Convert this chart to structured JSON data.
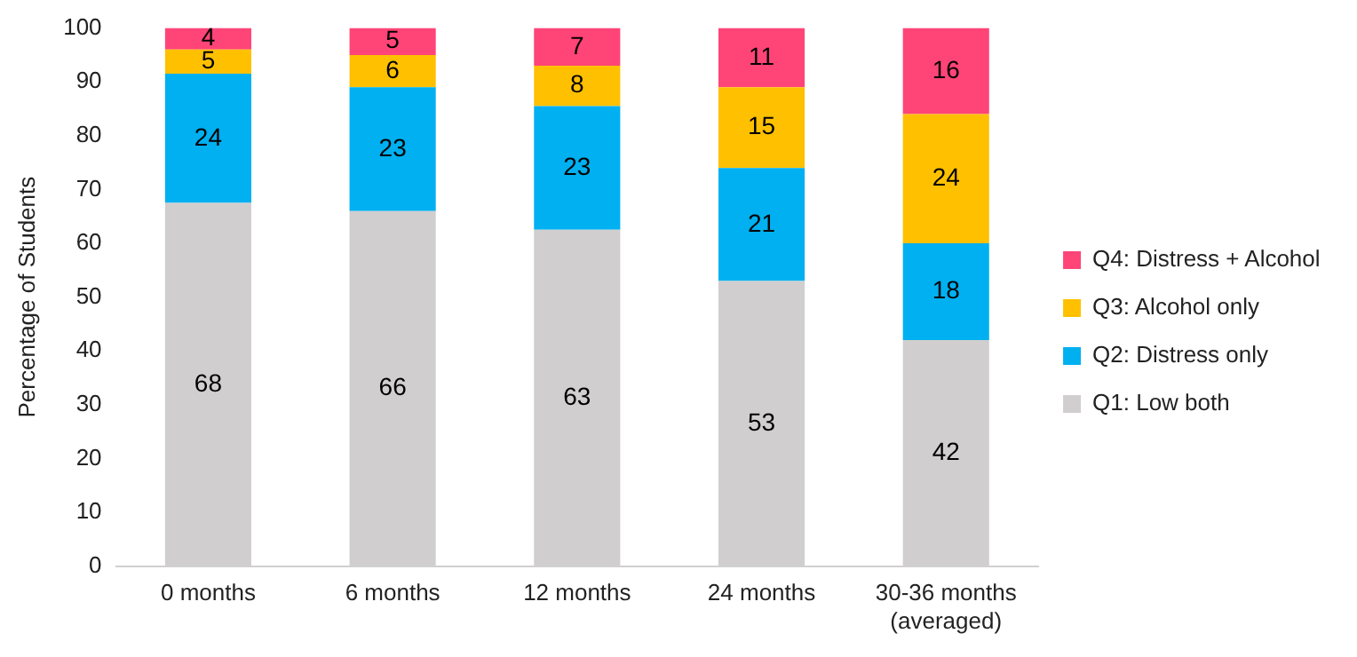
{
  "chart_data": {
    "type": "bar",
    "stacked": true,
    "ylabel": "Percentage of Students",
    "categories": [
      "0 months",
      "6 months",
      "12 months",
      "24 months",
      "30-36 months (averaged)"
    ],
    "series": [
      {
        "name": "Q1: Low both",
        "color": "#d0cece",
        "values": [
          67.5,
          66,
          62.5,
          53,
          42
        ],
        "value_labels": [
          "68",
          "66",
          "63",
          "53",
          "42"
        ]
      },
      {
        "name": "Q2: Distress only",
        "color": "#00b0f0",
        "values": [
          24,
          23,
          23,
          21,
          18
        ],
        "value_labels": [
          "24",
          "23",
          "23",
          "21",
          "18"
        ]
      },
      {
        "name": "Q3: Alcohol only",
        "color": "#ffc000",
        "values": [
          4.5,
          6,
          7.5,
          15,
          24
        ],
        "value_labels": [
          "5",
          "6",
          "8",
          "15",
          "24"
        ]
      },
      {
        "name": "Q4: Distress + Alcohol",
        "color": "#ff4477",
        "values": [
          4,
          5,
          7,
          11,
          16
        ],
        "value_labels": [
          "4",
          "5",
          "7",
          "11",
          "16"
        ]
      }
    ],
    "ylim": [
      0,
      100
    ],
    "yticks": [
      0,
      10,
      20,
      30,
      40,
      50,
      60,
      70,
      80,
      90,
      100
    ],
    "grid": false,
    "legend": "right"
  }
}
